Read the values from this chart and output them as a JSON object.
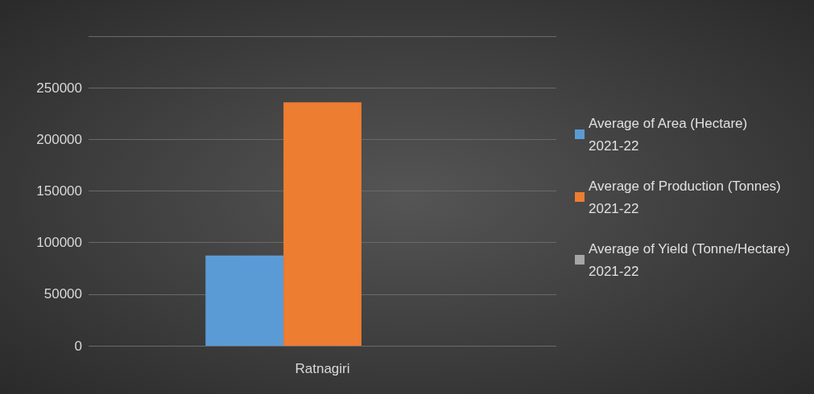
{
  "chart_data": {
    "type": "bar",
    "categories": [
      "Ratnagiri"
    ],
    "series": [
      {
        "name": "Average of Area (Hectare) 2021-22",
        "color": "#5b9bd5",
        "values": [
          87500
        ]
      },
      {
        "name": "Average of Production (Tonnes) 2021-22",
        "color": "#ed7d31",
        "values": [
          236000
        ]
      },
      {
        "name": "Average of Yield (Tonne/Hectare) 2021-22",
        "color": "#a5a5a5",
        "values": [
          0
        ]
      }
    ],
    "ylim": [
      0,
      300000
    ],
    "yticks": [
      0,
      50000,
      100000,
      150000,
      200000,
      250000,
      {
        "value": 300000,
        "label": null
      }
    ],
    "grid": "y",
    "legend": "right"
  }
}
